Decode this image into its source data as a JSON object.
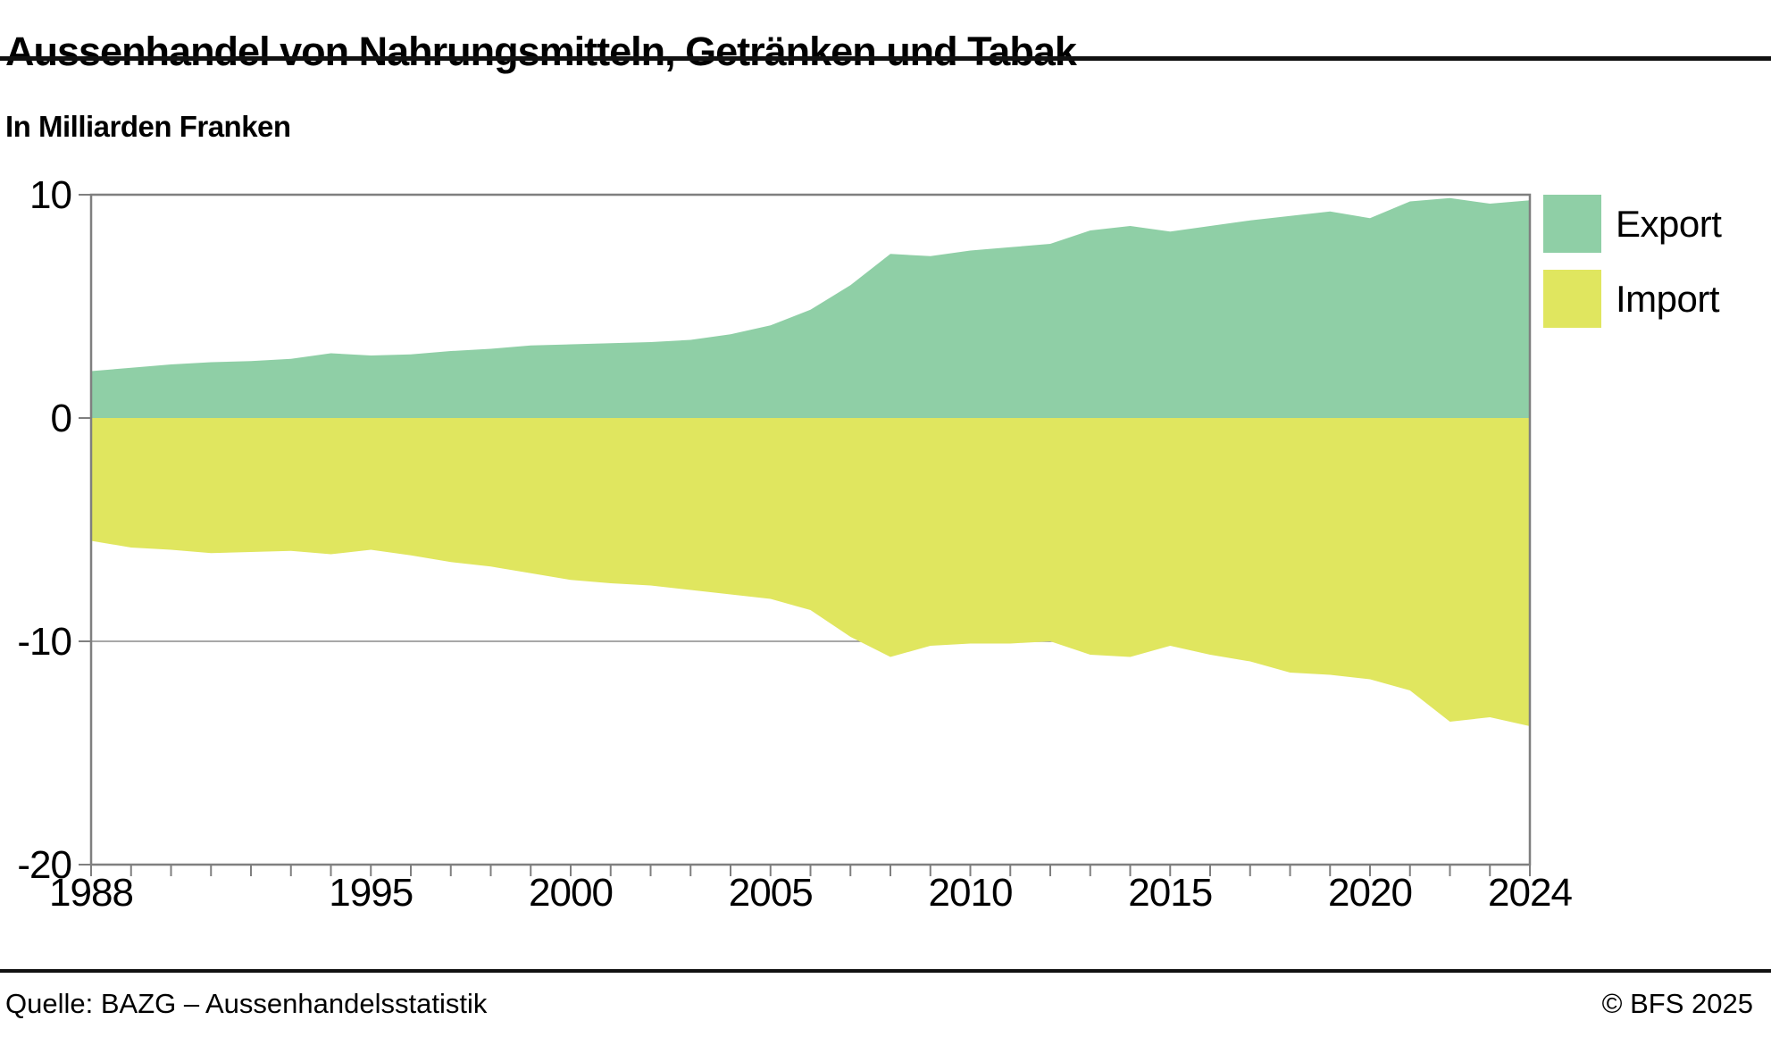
{
  "header": {
    "title": "Aussenhandel von Nahrungsmitteln, Getränken und Tabak",
    "subtitle": "In Milliarden Franken"
  },
  "footer": {
    "source": "Quelle: BAZG – Aussenhandelsstatistik",
    "copyright": "© BFS 2025"
  },
  "legend": [
    {
      "label": "Export",
      "color": "#8FCFA6"
    },
    {
      "label": "Import",
      "color": "#E0E65F"
    }
  ],
  "colors": {
    "export_area": "#8FCFA6",
    "import_area": "#E0E65F",
    "plot_frame": "#7f7f7f",
    "gridline": "#8c8c8c",
    "text": "#000000"
  },
  "chart_data": {
    "type": "area",
    "title": "Aussenhandel von Nahrungsmitteln, Getränken und Tabak",
    "ylabel": "In Milliarden Franken",
    "xlabel": "",
    "xlim": [
      1988,
      2024
    ],
    "ylim": [
      -20,
      10
    ],
    "y_ticks": [
      10,
      0,
      -10,
      -20
    ],
    "x_axis_labels": [
      1988,
      1995,
      2000,
      2005,
      2010,
      2015,
      2020,
      2024
    ],
    "grid": "horizontal gridlines at 0 and -10, drawn behind areas",
    "legend_position": "top-right",
    "x": [
      1988,
      1989,
      1990,
      1991,
      1992,
      1993,
      1994,
      1995,
      1996,
      1997,
      1998,
      1999,
      2000,
      2001,
      2002,
      2003,
      2004,
      2005,
      2006,
      2007,
      2008,
      2009,
      2010,
      2011,
      2012,
      2013,
      2014,
      2015,
      2016,
      2017,
      2018,
      2019,
      2020,
      2021,
      2022,
      2023,
      2024
    ],
    "series": [
      {
        "name": "Export",
        "color": "#8FCFA6",
        "values": [
          2.1,
          2.25,
          2.4,
          2.5,
          2.55,
          2.65,
          2.9,
          2.8,
          2.85,
          3.0,
          3.1,
          3.25,
          3.3,
          3.35,
          3.4,
          3.5,
          3.75,
          4.15,
          4.85,
          5.95,
          7.35,
          7.25,
          7.5,
          7.65,
          7.8,
          8.4,
          8.6,
          8.35,
          8.6,
          8.85,
          9.05,
          9.25,
          8.95,
          9.7,
          9.85,
          9.6,
          9.75
        ]
      },
      {
        "name": "Import",
        "color": "#E0E65F",
        "values": [
          -5.5,
          -5.8,
          -5.9,
          -6.05,
          -6.0,
          -5.95,
          -6.1,
          -5.9,
          -6.15,
          -6.45,
          -6.65,
          -6.95,
          -7.25,
          -7.4,
          -7.5,
          -7.7,
          -7.9,
          -8.1,
          -8.6,
          -9.8,
          -10.7,
          -10.2,
          -10.1,
          -10.1,
          -10.0,
          -10.6,
          -10.7,
          -10.2,
          -10.6,
          -10.9,
          -11.4,
          -11.5,
          -11.7,
          -12.2,
          -13.6,
          -13.4,
          -13.8
        ]
      }
    ]
  }
}
